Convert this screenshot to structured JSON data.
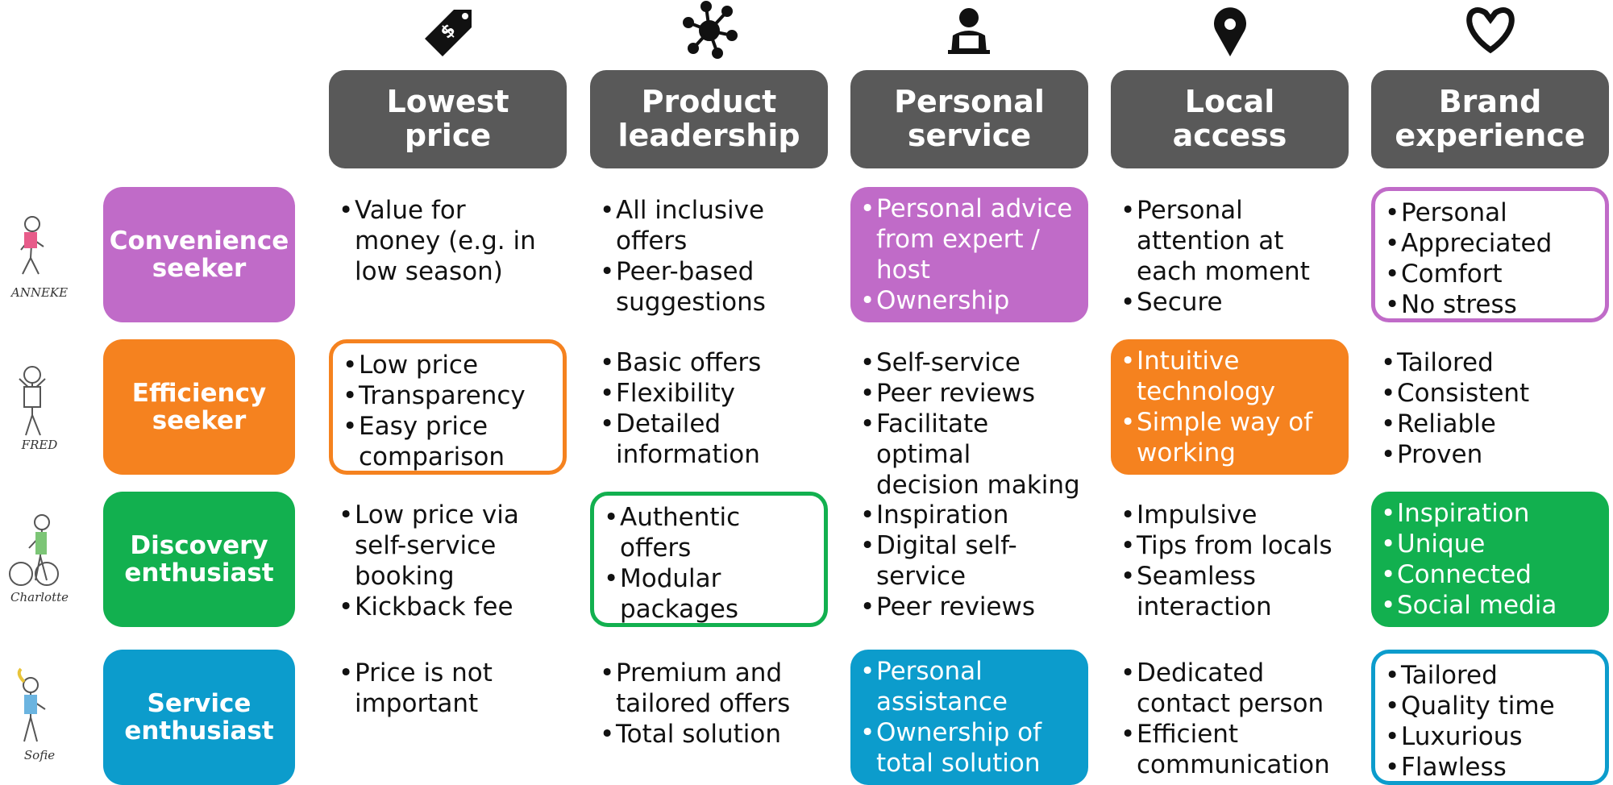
{
  "columns": [
    {
      "label": "Lowest price"
    },
    {
      "label": "Product leadership"
    },
    {
      "label": "Personal service"
    },
    {
      "label": "Local access"
    },
    {
      "label": "Brand experience"
    }
  ],
  "rows": [
    {
      "label": "Convenience seeker",
      "person": "ANNEKE",
      "color": "#c06bc8",
      "cells": [
        {
          "style": "plain",
          "items": [
            "Value for money (e.g. in low season)"
          ]
        },
        {
          "style": "plain",
          "items": [
            "All inclusive offers",
            "Peer-based suggestions"
          ]
        },
        {
          "style": "filled",
          "items": [
            "Personal advice from expert / host",
            "Ownership"
          ]
        },
        {
          "style": "plain",
          "items": [
            "Personal attention at each moment",
            "Secure"
          ]
        },
        {
          "style": "outlined",
          "items": [
            "Personal",
            "Appreciated",
            "Comfort",
            "No stress"
          ]
        }
      ]
    },
    {
      "label": "Efficiency seeker",
      "person": "FRED",
      "color": "#f5821f",
      "cells": [
        {
          "style": "outlined",
          "items": [
            "Low price",
            "Transparency",
            "Easy price comparison"
          ]
        },
        {
          "style": "plain",
          "items": [
            "Basic offers",
            "Flexibility",
            "Detailed information"
          ]
        },
        {
          "style": "plain",
          "items": [
            "Self-service",
            "Peer reviews",
            "Facilitate optimal decision making"
          ]
        },
        {
          "style": "filled",
          "items": [
            "Intuitive technology",
            "Simple way of working"
          ]
        },
        {
          "style": "plain",
          "items": [
            "Tailored",
            "Consistent",
            "Reliable",
            "Proven"
          ]
        }
      ]
    },
    {
      "label": "Discovery enthusiast",
      "person": "Charlotte",
      "color": "#12b04f",
      "cells": [
        {
          "style": "plain",
          "items": [
            "Low price via self-service booking",
            "Kickback fee"
          ]
        },
        {
          "style": "outlined",
          "items": [
            "Authentic offers",
            "Modular packages"
          ]
        },
        {
          "style": "plain",
          "items": [
            "Inspiration",
            "Digital self-service",
            "Peer reviews"
          ]
        },
        {
          "style": "plain",
          "items": [
            "Impulsive",
            "Tips from locals",
            "Seamless interaction"
          ]
        },
        {
          "style": "filled",
          "items": [
            "Inspiration",
            "Unique",
            "Connected",
            "Social media"
          ]
        }
      ]
    },
    {
      "label": "Service enthusiast",
      "person": "Sofie",
      "color": "#0c9ccc",
      "cells": [
        {
          "style": "plain",
          "items": [
            "Price is not important"
          ]
        },
        {
          "style": "plain",
          "items": [
            "Premium and tailored offers",
            "Total solution"
          ]
        },
        {
          "style": "filled",
          "items": [
            "Personal assistance",
            "Ownership of total solution"
          ]
        },
        {
          "style": "plain",
          "items": [
            "Dedicated contact person",
            "Efficient communication"
          ]
        },
        {
          "style": "outlined",
          "items": [
            "Tailored",
            "Quality time",
            "Luxurious",
            "Flawless"
          ]
        }
      ]
    }
  ]
}
